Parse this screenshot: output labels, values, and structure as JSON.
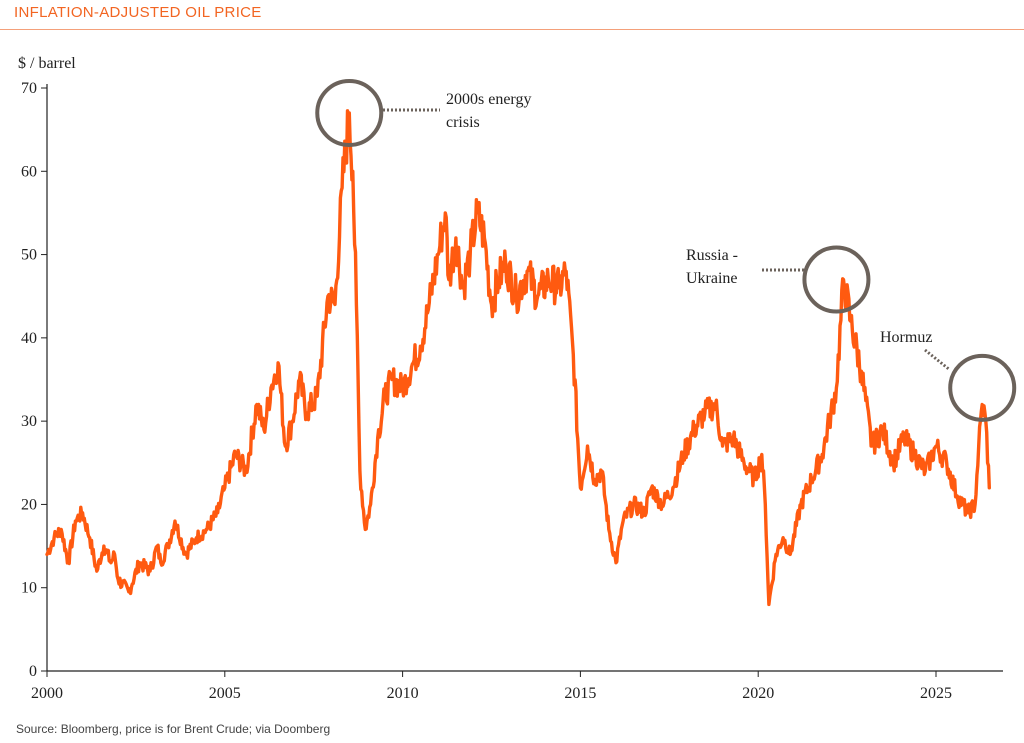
{
  "chart_data": {
    "type": "line",
    "title": "INFLATION-ADJUSTED OIL PRICE",
    "ylabel": "$ / barrel",
    "xlabel": "",
    "xlim": [
      2000,
      2026.6
    ],
    "ylim": [
      0,
      70
    ],
    "x_ticks": [
      2000,
      2005,
      2010,
      2015,
      2020,
      2025
    ],
    "y_ticks": [
      0,
      10,
      20,
      30,
      40,
      50,
      60,
      70
    ],
    "grid": false,
    "line_color": "#ff5a10",
    "source": "Source: Bloomberg, price is for Brent Crude; via Doomberg",
    "series": [
      {
        "x": [
          2000.0,
          2000.2,
          2000.4,
          2000.6,
          2000.8,
          2001.0,
          2001.2,
          2001.4,
          2001.6,
          2001.8,
          2001.9,
          2002.0,
          2002.3,
          2002.6,
          2002.9,
          2003.1,
          2003.2,
          2003.4,
          2003.6,
          2003.9,
          2004.2,
          2004.5,
          2004.8,
          2005.0,
          2005.3,
          2005.6,
          2005.9,
          2006.1,
          2006.3,
          2006.5,
          2006.7,
          2006.9,
          2007.1,
          2007.3,
          2007.6,
          2007.9,
          2008.1,
          2008.3,
          2008.5,
          2008.6,
          2008.7,
          2008.8,
          2008.95,
          2009.1,
          2009.3,
          2009.5,
          2009.7,
          2010.0,
          2010.3,
          2010.5,
          2010.7,
          2011.0,
          2011.2,
          2011.3,
          2011.5,
          2011.7,
          2011.9,
          2012.1,
          2012.3,
          2012.5,
          2012.7,
          2012.9,
          2013.2,
          2013.5,
          2013.8,
          2014.1,
          2014.4,
          2014.6,
          2014.8,
          2015.0,
          2015.2,
          2015.4,
          2015.6,
          2015.8,
          2016.0,
          2016.2,
          2016.5,
          2016.8,
          2017.0,
          2017.3,
          2017.6,
          2017.9,
          2018.2,
          2018.5,
          2018.8,
          2019.0,
          2019.3,
          2019.6,
          2019.9,
          2020.1,
          2020.2,
          2020.3,
          2020.5,
          2020.7,
          2020.9,
          2021.2,
          2021.5,
          2021.8,
          2022.0,
          2022.2,
          2022.4,
          2022.6,
          2022.9,
          2023.2,
          2023.5,
          2023.8,
          2024.1,
          2024.4,
          2024.7,
          2025.0,
          2025.3,
          2025.6,
          2025.9,
          2026.1,
          2026.2,
          2026.3,
          2026.4,
          2026.5
        ],
        "y": [
          14,
          16,
          17,
          13,
          18,
          19,
          16,
          12,
          15,
          13,
          14,
          11,
          9.5,
          13,
          12,
          15,
          13,
          15,
          18,
          14,
          16,
          17,
          19,
          22,
          26,
          24,
          32,
          29,
          34,
          37,
          27,
          30,
          35,
          31,
          33,
          45,
          44,
          58,
          67,
          60,
          44,
          24,
          17,
          20,
          28,
          33,
          35,
          34,
          37,
          39,
          43,
          50,
          55,
          47,
          52,
          46,
          50,
          55,
          52,
          44,
          47,
          49,
          45,
          48,
          45,
          47,
          46,
          48,
          38,
          22,
          27,
          23,
          24,
          17,
          13,
          18,
          20,
          19,
          22,
          20,
          22,
          26,
          29,
          31,
          32,
          27,
          28,
          25,
          23,
          26,
          20,
          8,
          14,
          16,
          14,
          20,
          23,
          26,
          30,
          34,
          47,
          42,
          36,
          27,
          29,
          25,
          28,
          26,
          24,
          27,
          25,
          21,
          19,
          20,
          27,
          32,
          30,
          22
        ],
        "name": ""
      }
    ],
    "annotations": [
      {
        "lines": [
          "2000s energy",
          "crisis"
        ],
        "x": 2008.5,
        "y": 67
      },
      {
        "lines": [
          "Russia -",
          "Ukraine"
        ],
        "x": 2022.2,
        "y": 47
      },
      {
        "lines": [
          "Hormuz"
        ],
        "x": 2026.3,
        "y": 34
      }
    ]
  }
}
